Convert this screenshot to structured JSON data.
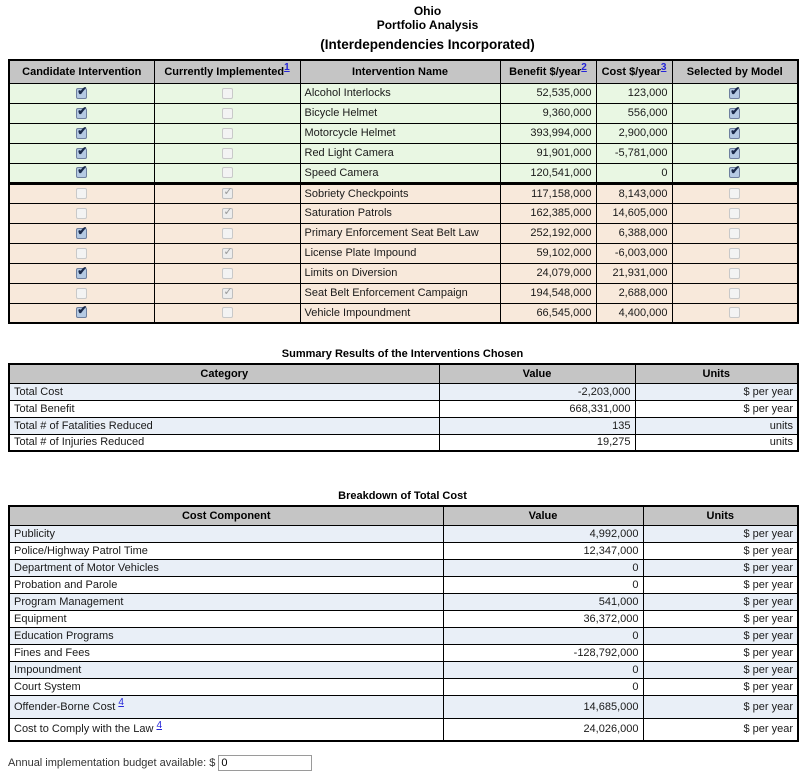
{
  "title": {
    "line1": "Ohio",
    "line2": "Portfolio Analysis",
    "line3": "(Interdependencies Incorporated)"
  },
  "colors": {
    "header_bg": "#c5c5c5",
    "candidate_row_green": "#e9f7e3",
    "existing_row_tan": "#f8e9db",
    "alt_row_blue": "#e9eff7",
    "link_blue": "#2424d8",
    "checkbox_checked_blue": "#b5cae3"
  },
  "interventions_table": {
    "headers": {
      "candidate": "Candidate Intervention",
      "implemented": "Currently Implemented",
      "implemented_note": "1",
      "name": "Intervention Name",
      "benefit": "Benefit $/year",
      "benefit_note": "2",
      "cost": "Cost $/year",
      "cost_note": "3",
      "selected": "Selected by Model"
    },
    "rows": [
      {
        "name": "Alcohol Interlocks",
        "benefit": "52,535,000",
        "cost": "123,000",
        "candidate": true,
        "implemented": false,
        "selected": true,
        "group": "candidate"
      },
      {
        "name": "Bicycle Helmet",
        "benefit": "9,360,000",
        "cost": "556,000",
        "candidate": true,
        "implemented": false,
        "selected": true,
        "group": "candidate"
      },
      {
        "name": "Motorcycle Helmet",
        "benefit": "393,994,000",
        "cost": "2,900,000",
        "candidate": true,
        "implemented": false,
        "selected": true,
        "group": "candidate"
      },
      {
        "name": "Red Light Camera",
        "benefit": "91,901,000",
        "cost": "-5,781,000",
        "candidate": true,
        "implemented": false,
        "selected": true,
        "group": "candidate"
      },
      {
        "name": "Speed Camera",
        "benefit": "120,541,000",
        "cost": "0",
        "candidate": true,
        "implemented": false,
        "selected": true,
        "group": "candidate"
      },
      {
        "name": "Sobriety Checkpoints",
        "benefit": "117,158,000",
        "cost": "8,143,000",
        "candidate": false,
        "implemented": true,
        "selected": false,
        "group": "existing"
      },
      {
        "name": "Saturation Patrols",
        "benefit": "162,385,000",
        "cost": "14,605,000",
        "candidate": false,
        "implemented": true,
        "selected": false,
        "group": "existing"
      },
      {
        "name": "Primary Enforcement Seat Belt Law",
        "benefit": "252,192,000",
        "cost": "6,388,000",
        "candidate": true,
        "implemented": false,
        "selected": false,
        "group": "existing"
      },
      {
        "name": "License Plate Impound",
        "benefit": "59,102,000",
        "cost": "-6,003,000",
        "candidate": false,
        "implemented": true,
        "selected": false,
        "group": "existing"
      },
      {
        "name": "Limits on Diversion",
        "benefit": "24,079,000",
        "cost": "21,931,000",
        "candidate": true,
        "implemented": false,
        "selected": false,
        "group": "existing"
      },
      {
        "name": "Seat Belt Enforcement Campaign",
        "benefit": "194,548,000",
        "cost": "2,688,000",
        "candidate": false,
        "implemented": true,
        "selected": false,
        "group": "existing"
      },
      {
        "name": "Vehicle Impoundment",
        "benefit": "66,545,000",
        "cost": "4,400,000",
        "candidate": true,
        "implemented": false,
        "selected": false,
        "group": "existing"
      }
    ]
  },
  "summary_table": {
    "title": "Summary Results of the Interventions Chosen",
    "headers": [
      "Category",
      "Value",
      "Units"
    ],
    "rows": [
      {
        "category": "Total Cost",
        "value": "-2,203,000",
        "units": "$ per year"
      },
      {
        "category": "Total Benefit",
        "value": "668,331,000",
        "units": "$ per year"
      },
      {
        "category": "Total # of Fatalities Reduced",
        "value": "135",
        "units": "units"
      },
      {
        "category": "Total # of Injuries Reduced",
        "value": "19,275",
        "units": "units"
      }
    ]
  },
  "breakdown_table": {
    "title": "Breakdown of Total Cost",
    "headers": [
      "Cost Component",
      "Value",
      "Units"
    ],
    "rows": [
      {
        "label": "Publicity",
        "value": "4,992,000",
        "units": "$ per year"
      },
      {
        "label": "Police/Highway Patrol Time",
        "value": "12,347,000",
        "units": "$ per year"
      },
      {
        "label": "Department of Motor Vehicles",
        "value": "0",
        "units": "$ per year"
      },
      {
        "label": "Probation and Parole",
        "value": "0",
        "units": "$ per year"
      },
      {
        "label": "Program Management",
        "value": "541,000",
        "units": "$ per year"
      },
      {
        "label": "Equipment",
        "value": "36,372,000",
        "units": "$ per year"
      },
      {
        "label": "Education Programs",
        "value": "0",
        "units": "$ per year"
      },
      {
        "label": "Fines and Fees",
        "value": "-128,792,000",
        "units": "$ per year"
      },
      {
        "label": "Impoundment",
        "value": "0",
        "units": "$ per year"
      },
      {
        "label": "Court System",
        "value": "0",
        "units": "$ per year"
      },
      {
        "label": "Offender-Borne Cost",
        "footnote": "4",
        "value": "14,685,000",
        "units": "$ per year"
      },
      {
        "label": "Cost to Comply with the Law",
        "footnote": "4",
        "value": "24,026,000",
        "units": "$ per year"
      }
    ]
  },
  "budget": {
    "label": "Annual implementation budget available: $",
    "value": "0"
  }
}
